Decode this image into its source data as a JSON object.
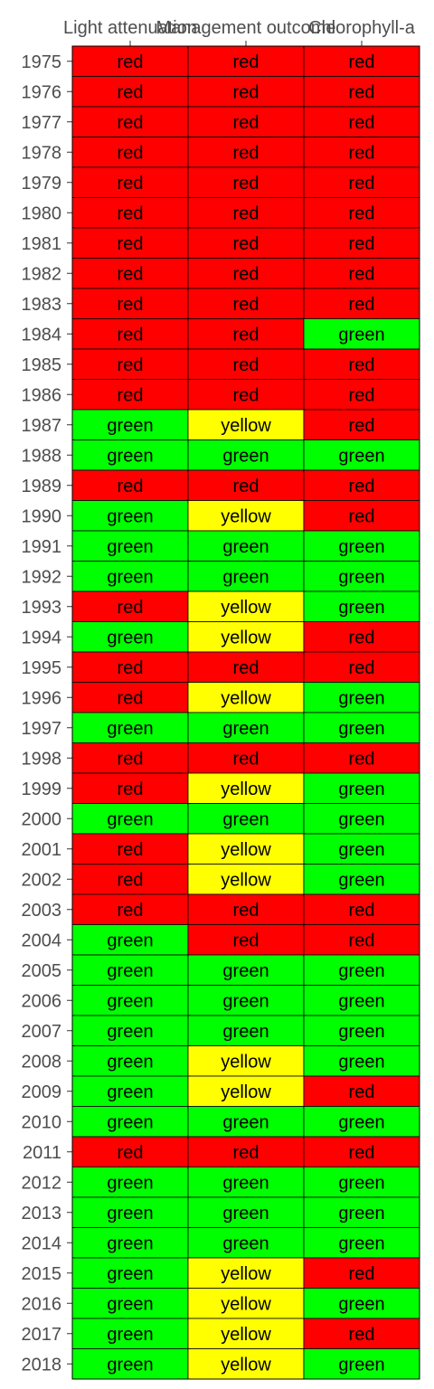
{
  "chart_data": {
    "type": "heatmap",
    "columns": [
      "Light attenuation",
      "Management outcome",
      "Chlorophyll-a"
    ],
    "rows": [
      "1975",
      "1976",
      "1977",
      "1978",
      "1979",
      "1980",
      "1981",
      "1982",
      "1983",
      "1984",
      "1985",
      "1986",
      "1987",
      "1988",
      "1989",
      "1990",
      "1991",
      "1992",
      "1993",
      "1994",
      "1995",
      "1996",
      "1997",
      "1998",
      "1999",
      "2000",
      "2001",
      "2002",
      "2003",
      "2004",
      "2005",
      "2006",
      "2007",
      "2008",
      "2009",
      "2010",
      "2011",
      "2012",
      "2013",
      "2014",
      "2015",
      "2016",
      "2017",
      "2018"
    ],
    "values": [
      [
        "red",
        "red",
        "red"
      ],
      [
        "red",
        "red",
        "red"
      ],
      [
        "red",
        "red",
        "red"
      ],
      [
        "red",
        "red",
        "red"
      ],
      [
        "red",
        "red",
        "red"
      ],
      [
        "red",
        "red",
        "red"
      ],
      [
        "red",
        "red",
        "red"
      ],
      [
        "red",
        "red",
        "red"
      ],
      [
        "red",
        "red",
        "red"
      ],
      [
        "red",
        "red",
        "green"
      ],
      [
        "red",
        "red",
        "red"
      ],
      [
        "red",
        "red",
        "red"
      ],
      [
        "green",
        "yellow",
        "red"
      ],
      [
        "green",
        "green",
        "green"
      ],
      [
        "red",
        "red",
        "red"
      ],
      [
        "green",
        "yellow",
        "red"
      ],
      [
        "green",
        "green",
        "green"
      ],
      [
        "green",
        "green",
        "green"
      ],
      [
        "red",
        "yellow",
        "green"
      ],
      [
        "green",
        "yellow",
        "red"
      ],
      [
        "red",
        "red",
        "red"
      ],
      [
        "red",
        "yellow",
        "green"
      ],
      [
        "green",
        "green",
        "green"
      ],
      [
        "red",
        "red",
        "red"
      ],
      [
        "red",
        "yellow",
        "green"
      ],
      [
        "green",
        "green",
        "green"
      ],
      [
        "red",
        "yellow",
        "green"
      ],
      [
        "red",
        "yellow",
        "green"
      ],
      [
        "red",
        "red",
        "red"
      ],
      [
        "green",
        "red",
        "red"
      ],
      [
        "green",
        "green",
        "green"
      ],
      [
        "green",
        "green",
        "green"
      ],
      [
        "green",
        "green",
        "green"
      ],
      [
        "green",
        "yellow",
        "green"
      ],
      [
        "green",
        "yellow",
        "red"
      ],
      [
        "green",
        "green",
        "green"
      ],
      [
        "red",
        "red",
        "red"
      ],
      [
        "green",
        "green",
        "green"
      ],
      [
        "green",
        "green",
        "green"
      ],
      [
        "green",
        "green",
        "green"
      ],
      [
        "green",
        "yellow",
        "red"
      ],
      [
        "green",
        "yellow",
        "green"
      ],
      [
        "green",
        "yellow",
        "red"
      ],
      [
        "green",
        "yellow",
        "green"
      ]
    ],
    "colors": {
      "red": "#ff0000",
      "green": "#00ff00",
      "yellow": "#ffff00"
    },
    "x_axis_position": "top",
    "grid": false
  }
}
